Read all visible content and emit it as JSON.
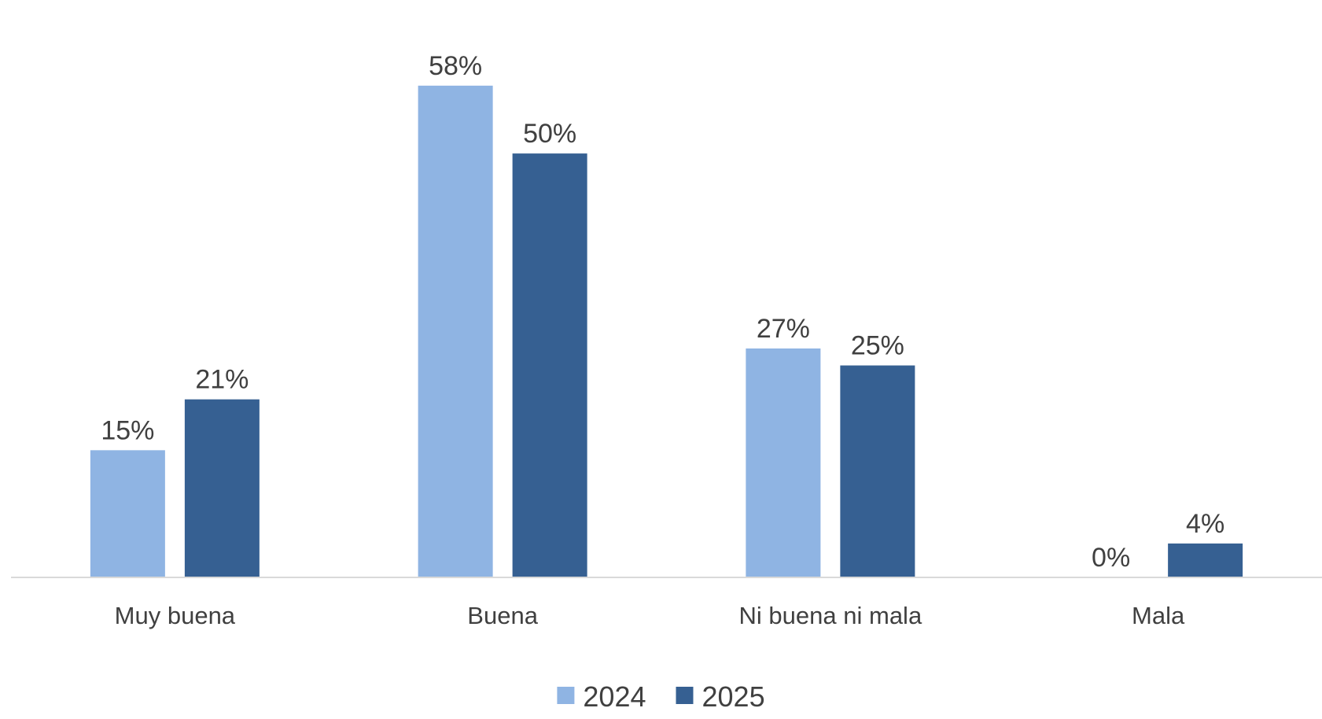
{
  "chart_data": {
    "type": "bar",
    "categories": [
      "Muy buena",
      "Buena",
      "Ni buena ni mala",
      "Mala"
    ],
    "series": [
      {
        "name": "2024",
        "values": [
          15,
          58,
          27,
          0
        ],
        "color": "#8FB4E3"
      },
      {
        "name": "2025",
        "values": [
          21,
          50,
          25,
          4
        ],
        "color": "#366092"
      }
    ],
    "value_suffix": "%",
    "ylim": [
      0,
      63
    ],
    "grid": false,
    "legend": "bottom-center",
    "axis_color": "#D9D9D9"
  }
}
